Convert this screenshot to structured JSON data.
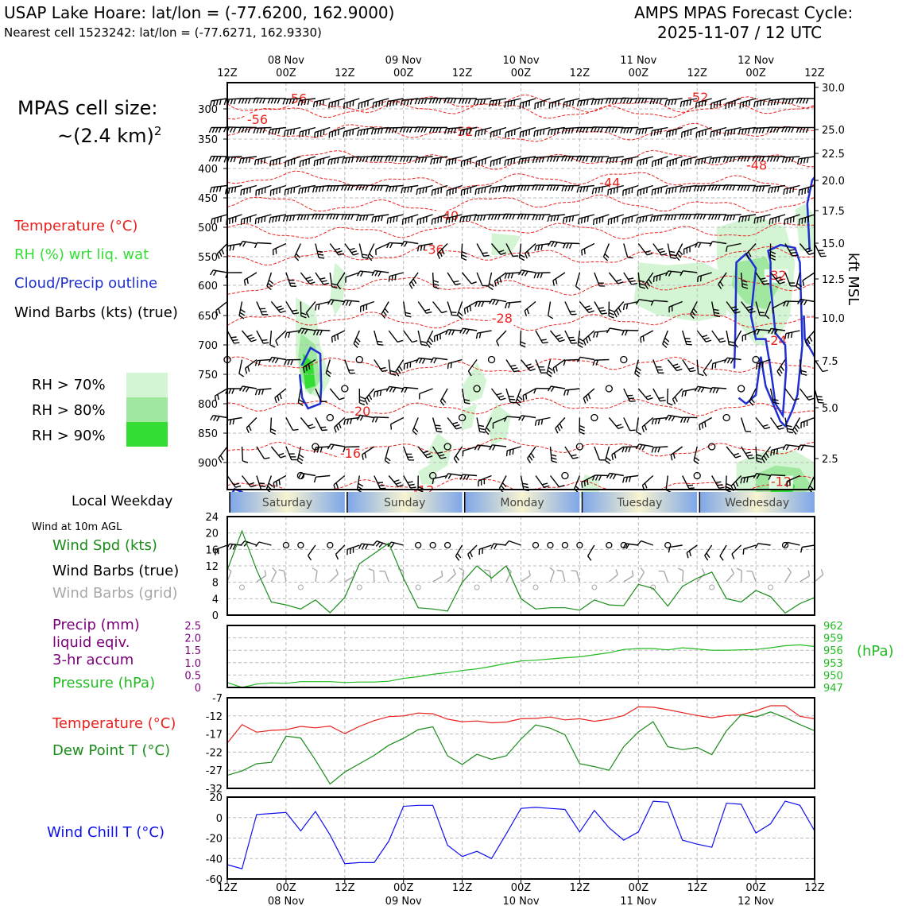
{
  "header": {
    "station": "USAP Lake Hoare: lat/lon = (-77.6200, 162.9000)",
    "nearest": "Nearest cell 1523242: lat/lon = (-77.6271, 162.9330)",
    "cycle_line1": "AMPS MPAS Forecast Cycle:",
    "cycle_line2": "2025-11-07 / 12 UTC"
  },
  "legend": {
    "cell_size_label": "MPAS cell size:",
    "cell_size_value": "~(2.4 km)",
    "cell_size_exp": "2",
    "temperature": "Temperature (°C)",
    "rh": "RH (%) wrt liq. wat",
    "cloud": "Cloud/Precip outline",
    "wind": "Wind Barbs (kts) (true)",
    "rh70": "RH > 70%",
    "rh80": "RH > 80%",
    "rh90": "RH > 90%",
    "local_weekday": "Local Weekday",
    "wind10m": "Wind at 10m AGL",
    "wind_spd": "Wind Spd (kts)",
    "wind_barbs_true": "Wind Barbs (true)",
    "wind_barbs_grid": "Wind Barbs (grid)",
    "precip1": "Precip (mm)",
    "precip2": "liquid eqiv.",
    "precip3": "3-hr accum",
    "pressure": "Pressure (hPa)",
    "temp2": "Temperature (°C)",
    "dewpoint": "Dew Point T (°C)",
    "windchill": "Wind Chill T (°C)",
    "hpa_unit": "(hPa)",
    "kft_unit": "kft MSL"
  },
  "colors": {
    "temp": "#e8231f",
    "rh70": "#d4f5d4",
    "rh80": "#a0e8a0",
    "rh90": "#33dd33",
    "cloud": "#1f2fd0",
    "wind_true": "#000000",
    "wind_grid": "#a8a8a8",
    "wind_spd": "#1a8c1a",
    "precip": "#7a007a",
    "pressure": "#22bb22",
    "dewpoint": "#1a8c1a",
    "windchill": "#1010ee"
  },
  "time_axis": {
    "top_labels": [
      {
        "l1": "",
        "l2": "12Z"
      },
      {
        "l1": "08 Nov",
        "l2": "00Z"
      },
      {
        "l1": "",
        "l2": "12Z"
      },
      {
        "l1": "09 Nov",
        "l2": "00Z"
      },
      {
        "l1": "",
        "l2": "12Z"
      },
      {
        "l1": "10 Nov",
        "l2": "00Z"
      },
      {
        "l1": "",
        "l2": "12Z"
      },
      {
        "l1": "11 Nov",
        "l2": "00Z"
      },
      {
        "l1": "",
        "l2": "12Z"
      },
      {
        "l1": "12 Nov",
        "l2": "00Z"
      },
      {
        "l1": "",
        "l2": "12Z"
      }
    ],
    "weekdays": [
      "Saturday",
      "Sunday",
      "Monday",
      "Tuesday",
      "Wednesday"
    ]
  },
  "chart_data": [
    {
      "type": "heatmap",
      "name": "time-height cross section",
      "x_hours": [
        0,
        120
      ],
      "pressure_ticks": [
        300,
        350,
        400,
        450,
        500,
        550,
        600,
        650,
        700,
        750,
        800,
        850,
        900
      ],
      "kft_ticks": [
        "30.0",
        "25.0",
        "22.5",
        "20.0",
        "17.5",
        "15.0",
        "12.5",
        "10.0",
        "7.5",
        "5.0",
        "2.5"
      ],
      "temp_labels": [
        {
          "t": "-56",
          "x": 6,
          "p": 325
        },
        {
          "t": "-56",
          "x": 14,
          "p": 290
        },
        {
          "t": "-52",
          "x": 48,
          "p": 345
        },
        {
          "t": "-52",
          "x": 96,
          "p": 288
        },
        {
          "t": "-48",
          "x": 108,
          "p": 402
        },
        {
          "t": "-44",
          "x": 78,
          "p": 432
        },
        {
          "t": "-40",
          "x": 45,
          "p": 488
        },
        {
          "t": "-36",
          "x": 42,
          "p": 545
        },
        {
          "t": "-32",
          "x": 112,
          "p": 590
        },
        {
          "t": "-28",
          "x": 56,
          "p": 662
        },
        {
          "t": "-24",
          "x": 112,
          "p": 700
        },
        {
          "t": "-20",
          "x": 27,
          "p": 820
        },
        {
          "t": "-16",
          "x": 25,
          "p": 892
        },
        {
          "t": "-12",
          "x": 40,
          "p": 955
        },
        {
          "t": "-12",
          "x": 113,
          "p": 940
        }
      ]
    },
    {
      "type": "line",
      "name": "Wind Spd (kts)",
      "x_hours": [
        0,
        3,
        6,
        9,
        12,
        15,
        18,
        21,
        24,
        27,
        30,
        33,
        36,
        39,
        42,
        45,
        48,
        51,
        54,
        57,
        60,
        63,
        66,
        69,
        72,
        75,
        78,
        81,
        84,
        87,
        90,
        93,
        96,
        99,
        102,
        105,
        108,
        111,
        114,
        117,
        120
      ],
      "values": [
        11,
        20.5,
        11,
        3.2,
        2.5,
        1.5,
        3.7,
        0.6,
        4.3,
        12.5,
        15,
        17.5,
        9,
        1.8,
        1.5,
        1,
        8,
        12,
        9,
        12,
        4,
        1.5,
        1.8,
        1.8,
        1.2,
        3.7,
        2.5,
        2.3,
        7.5,
        6.5,
        2.2,
        7,
        9,
        10.5,
        4,
        3.2,
        6,
        4.5,
        0.5,
        2.8,
        4.3
      ],
      "ylim": [
        0,
        24
      ],
      "yticks": [
        "0",
        "4",
        "8",
        "12",
        "16",
        "20",
        "24"
      ]
    },
    {
      "type": "line",
      "name": "Pressure (hPa)",
      "x_hours": [
        0,
        3,
        6,
        9,
        12,
        15,
        18,
        21,
        24,
        27,
        30,
        33,
        36,
        39,
        42,
        45,
        48,
        51,
        54,
        57,
        60,
        63,
        66,
        69,
        72,
        75,
        78,
        81,
        84,
        87,
        90,
        93,
        96,
        99,
        102,
        105,
        108,
        111,
        114,
        117,
        120
      ],
      "values": [
        948.2,
        947.0,
        947.8,
        948.1,
        948.0,
        948.4,
        948.4,
        948.4,
        948.2,
        948.3,
        948.3,
        948.5,
        949.2,
        949.6,
        950.2,
        950.6,
        951.1,
        951.5,
        952.1,
        952.8,
        953.4,
        953.6,
        953.9,
        954.2,
        954.4,
        954.9,
        955.4,
        956.2,
        956.4,
        956.4,
        956.1,
        956.6,
        956.3,
        956.0,
        956.0,
        956.1,
        956.2,
        956.6,
        957.1,
        957.3,
        956.9
      ],
      "ylim": [
        947,
        962
      ],
      "pressure_ticks": [
        "947",
        "950",
        "953",
        "956",
        "959",
        "962"
      ],
      "precip_ticks": [
        "0",
        "0.5",
        "1.0",
        "1.5",
        "2.0",
        "2.5"
      ]
    },
    {
      "type": "line",
      "name": "Temperature and Dew Point",
      "x_hours": [
        0,
        3,
        6,
        9,
        12,
        15,
        18,
        21,
        24,
        27,
        30,
        33,
        36,
        39,
        42,
        45,
        48,
        51,
        54,
        57,
        60,
        63,
        66,
        69,
        72,
        75,
        78,
        81,
        84,
        87,
        90,
        93,
        96,
        99,
        102,
        105,
        108,
        111,
        114,
        117,
        120
      ],
      "series": [
        {
          "name": "Temperature (°C)",
          "values": [
            -19.5,
            -14.4,
            -16.5,
            -16,
            -15.8,
            -14.9,
            -15.3,
            -14.8,
            -16.9,
            -14.9,
            -13.3,
            -12.2,
            -12.0,
            -11.2,
            -11.4,
            -12.9,
            -13.6,
            -13.4,
            -13.9,
            -13.7,
            -12.8,
            -12.7,
            -12.3,
            -13.1,
            -12.8,
            -13.5,
            -12.9,
            -11.9,
            -9.5,
            -9.6,
            -10.3,
            -11.1,
            -11.9,
            -12.5,
            -11.9,
            -11.7,
            -10.6,
            -9.2,
            -9.2,
            -12.1,
            -12.8
          ]
        },
        {
          "name": "Dew Point T (°C)",
          "values": [
            -28.4,
            -27.2,
            -25.2,
            -24.8,
            -17.6,
            -18.1,
            -24.2,
            -30.8,
            -27.5,
            -25.2,
            -22.9,
            -20.1,
            -18.2,
            -15.8,
            -15.0,
            -23.0,
            -25.4,
            -22.6,
            -24.0,
            -23.0,
            -18.4,
            -14.5,
            -15.4,
            -17.2,
            -25.2,
            -26.0,
            -27.0,
            -20.5,
            -16.4,
            -13.6,
            -20.5,
            -21.3,
            -20.7,
            -22.7,
            -16.1,
            -11.7,
            -12.3,
            -10.9,
            -12.5,
            -14.4,
            -16.1
          ]
        }
      ],
      "ylim": [
        -32,
        -7
      ],
      "yticks": [
        "-7",
        "-12",
        "-17",
        "-22",
        "-27",
        "-32"
      ]
    },
    {
      "type": "line",
      "name": "Wind Chill T (°C)",
      "x_hours": [
        0,
        3,
        6,
        9,
        12,
        15,
        18,
        21,
        24,
        27,
        30,
        33,
        36,
        39,
        42,
        45,
        48,
        51,
        54,
        57,
        60,
        63,
        66,
        69,
        72,
        75,
        78,
        81,
        84,
        87,
        90,
        93,
        96,
        99,
        102,
        105,
        108,
        111,
        114,
        117,
        120
      ],
      "values": [
        -46,
        -50,
        3,
        4,
        5,
        -13,
        6,
        -17,
        -45,
        -44,
        -44,
        -23,
        11,
        12,
        12,
        -27,
        -38,
        -33,
        -40,
        -16,
        9,
        10,
        9,
        8,
        -14,
        7,
        -10,
        -22,
        -14,
        16,
        15,
        -22,
        -26,
        -29,
        14,
        13,
        -15,
        -6,
        16,
        12,
        -13
      ],
      "ylim": [
        -60,
        20
      ],
      "yticks": [
        "20",
        "0",
        "-20",
        "-40",
        "-60"
      ]
    }
  ]
}
